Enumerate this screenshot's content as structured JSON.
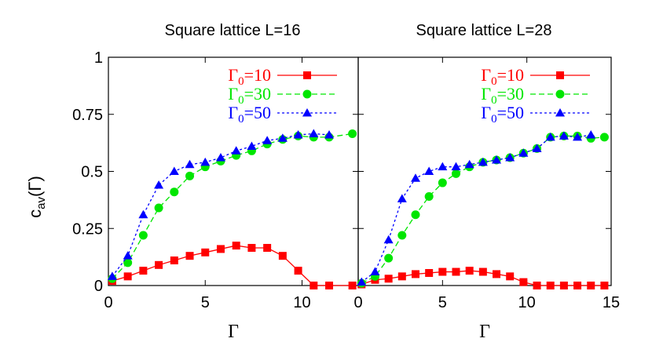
{
  "ylabel": "c",
  "ylabel_sub": "av",
  "ylabel_arg": "(Γ)",
  "colors": {
    "g10": "#ff0000",
    "g30": "#00e600",
    "g50": "#0000ff",
    "axis": "#000000"
  },
  "chart_data": [
    {
      "type": "line",
      "title": "Square lattice L=16",
      "xlabel": "Γ",
      "xlim": [
        0,
        12.9
      ],
      "ylim": [
        0,
        1
      ],
      "xticks": [
        0,
        5,
        10
      ],
      "yticks": [
        0,
        0.25,
        0.5,
        0.75,
        1
      ],
      "ytick_labels": [
        "0",
        "0.25",
        "0.5",
        "0.75",
        "1"
      ],
      "grid": false,
      "legend": "top-right",
      "x": [
        0.2,
        1.0,
        1.8,
        2.6,
        3.4,
        4.2,
        5.0,
        5.8,
        6.6,
        7.4,
        8.2,
        9.0,
        9.8,
        10.6,
        11.4,
        12.6
      ],
      "series": [
        {
          "name": "Γ0=10",
          "label_main": "Γ",
          "label_sub": "0",
          "label_rest": "=10",
          "color": "#ff0000",
          "marker": "square",
          "dash": "solid",
          "values": [
            0.02,
            0.04,
            0.065,
            0.09,
            0.11,
            0.13,
            0.145,
            0.16,
            0.175,
            0.165,
            0.165,
            0.13,
            0.065,
            0.0,
            0.0,
            0.0
          ]
        },
        {
          "name": "Γ0=30",
          "label_main": "Γ",
          "label_sub": "0",
          "label_rest": "=30",
          "color": "#00e600",
          "marker": "circle",
          "dash": "dashed",
          "values": [
            0.03,
            0.1,
            0.22,
            0.34,
            0.41,
            0.48,
            0.52,
            0.545,
            0.57,
            0.59,
            0.62,
            0.64,
            0.655,
            0.65,
            0.65,
            0.665
          ]
        },
        {
          "name": "Γ0=50",
          "label_main": "Γ",
          "label_sub": "0",
          "label_rest": "=50",
          "color": "#0000ff",
          "marker": "triangle",
          "dash": "dotted",
          "values": [
            0.04,
            0.13,
            0.31,
            0.44,
            0.5,
            0.53,
            0.54,
            0.56,
            0.59,
            0.61,
            0.635,
            0.645,
            0.66,
            0.665,
            0.66,
            null
          ]
        }
      ]
    },
    {
      "type": "line",
      "title": "Square lattice L=28",
      "xlabel": "Γ",
      "xlim": [
        0,
        15
      ],
      "ylim": [
        0,
        1
      ],
      "xticks": [
        0,
        5,
        10,
        15
      ],
      "yticks": [
        0,
        0.25,
        0.5,
        0.75,
        1
      ],
      "grid": false,
      "legend": "top-right",
      "x": [
        0.2,
        1.0,
        1.8,
        2.6,
        3.4,
        4.2,
        5.0,
        5.8,
        6.6,
        7.4,
        8.2,
        9.0,
        9.8,
        10.6,
        11.4,
        12.2,
        13.0,
        13.8,
        14.6
      ],
      "series": [
        {
          "name": "Γ0=10",
          "label_main": "Γ",
          "label_sub": "0",
          "label_rest": "=10",
          "color": "#ff0000",
          "marker": "square",
          "dash": "solid",
          "values": [
            0.005,
            0.025,
            0.03,
            0.04,
            0.05,
            0.055,
            0.06,
            0.06,
            0.065,
            0.06,
            0.05,
            0.04,
            0.015,
            0.0,
            0.0,
            0.0,
            0.0,
            0.0,
            0.0
          ]
        },
        {
          "name": "Γ0=30",
          "label_main": "Γ",
          "label_sub": "0",
          "label_rest": "=30",
          "color": "#00e600",
          "marker": "circle",
          "dash": "dashed",
          "values": [
            0.01,
            0.04,
            0.12,
            0.22,
            0.31,
            0.39,
            0.45,
            0.49,
            0.52,
            0.54,
            0.55,
            0.56,
            0.58,
            0.6,
            0.65,
            0.655,
            0.655,
            0.645,
            0.65
          ]
        },
        {
          "name": "Γ0=50",
          "label_main": "Γ",
          "label_sub": "0",
          "label_rest": "=50",
          "color": "#0000ff",
          "marker": "triangle",
          "dash": "dotted",
          "values": [
            0.015,
            0.06,
            0.2,
            0.38,
            0.47,
            0.5,
            0.52,
            0.52,
            0.53,
            0.54,
            0.55,
            0.56,
            0.58,
            0.6,
            0.65,
            0.655,
            0.65,
            0.66,
            null
          ]
        }
      ]
    }
  ]
}
